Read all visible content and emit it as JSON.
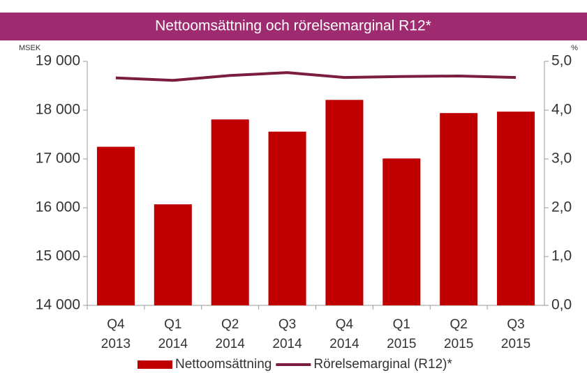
{
  "chart_data": {
    "type": "bar",
    "title": "Nettoomsättning och rörelsemarginal R12*",
    "y_label": "MSEK",
    "y2_label": "%",
    "categories": [
      [
        "Q4",
        "2013"
      ],
      [
        "Q1",
        "2014"
      ],
      [
        "Q2",
        "2014"
      ],
      [
        "Q3",
        "2014"
      ],
      [
        "Q4",
        "2014"
      ],
      [
        "Q1",
        "2015"
      ],
      [
        "Q2",
        "2015"
      ],
      [
        "Q3",
        "2015"
      ]
    ],
    "ylim": [
      14000,
      19000
    ],
    "yticks": [
      {
        "value": 14000,
        "label": "14 000"
      },
      {
        "value": 15000,
        "label": "15 000"
      },
      {
        "value": 16000,
        "label": "16 000"
      },
      {
        "value": 17000,
        "label": "17 000"
      },
      {
        "value": 18000,
        "label": "18 000"
      },
      {
        "value": 19000,
        "label": "19 000"
      }
    ],
    "y2lim": [
      0,
      5
    ],
    "y2ticks": [
      {
        "value": 0,
        "label": "0,0"
      },
      {
        "value": 1,
        "label": "1,0"
      },
      {
        "value": 2,
        "label": "2,0"
      },
      {
        "value": 3,
        "label": "3,0"
      },
      {
        "value": 4,
        "label": "4,0"
      },
      {
        "value": 5,
        "label": "5,0"
      }
    ],
    "series": [
      {
        "name": "Nettoomsättning",
        "type": "bar",
        "color": "#c00000",
        "values": [
          17250,
          16070,
          17810,
          17560,
          18210,
          17010,
          17940,
          17970
        ]
      },
      {
        "name": "Rörelsemarginal (R12)*",
        "type": "line",
        "axis": "y2",
        "color": "#7b1c40",
        "values": [
          4.66,
          4.61,
          4.71,
          4.77,
          4.67,
          4.69,
          4.7,
          4.67
        ]
      }
    ],
    "legend": "bottom"
  }
}
